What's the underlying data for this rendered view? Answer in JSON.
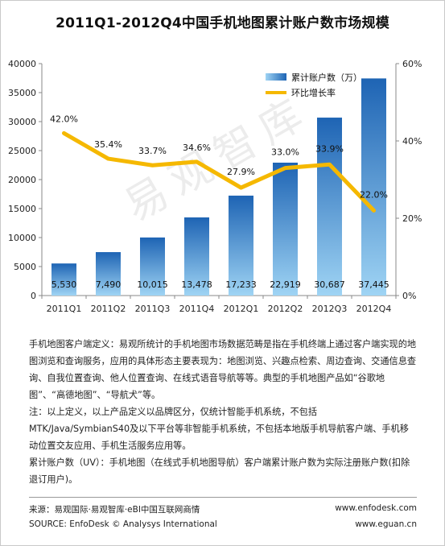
{
  "chart_data": {
    "type": "bar",
    "title": "2011Q1-2012Q4中国手机地图累计账户数市场规模",
    "categories": [
      "2011Q1",
      "2011Q2",
      "2011Q3",
      "2011Q4",
      "2012Q1",
      "2012Q2",
      "2012Q3",
      "2012Q4"
    ],
    "series": [
      {
        "name": "累计账户数（万）",
        "type": "bar",
        "axis": "left",
        "values": [
          5530,
          7490,
          10015,
          13478,
          17233,
          22919,
          30687,
          37445
        ],
        "labels": [
          "5,530",
          "7,490",
          "10,015",
          "13,478",
          "17,233",
          "22,919",
          "30,687",
          "37,445"
        ]
      },
      {
        "name": "环比增长率",
        "type": "line",
        "axis": "right",
        "values": [
          42.0,
          35.4,
          33.7,
          34.6,
          27.9,
          33.0,
          33.9,
          22.0
        ],
        "labels": [
          "42.0%",
          "35.4%",
          "33.7%",
          "34.6%",
          "27.9%",
          "33.0%",
          "33.9%",
          "22.0%"
        ]
      }
    ],
    "y_left": {
      "min": 0,
      "max": 40000,
      "ticks": [
        "0",
        "5000",
        "10000",
        "15000",
        "20000",
        "25000",
        "30000",
        "35000",
        "40000"
      ]
    },
    "y_right": {
      "min": 0,
      "max": 60,
      "ticks": [
        "0%",
        "20%",
        "40%",
        "60%"
      ]
    },
    "grid": false,
    "legend": "top-right",
    "colors": {
      "bar_top": "#1e64b4",
      "bar_bottom": "#9fd4f4",
      "line": "#f5b800"
    }
  },
  "watermark": "易观智库",
  "notes": [
    "手机地图客户端定义：易观所统计的手机地图市场数据范畴是指在手机终端上通过客户端实现的地图浏览和查询服务，应用的具体形态主要表现为：地图浏览、兴趣点检索、周边查询、交通信息查询、自我位置查询、他人位置查询、在线式语音导航等等。典型的手机地图产品如“谷歌地图”、“高德地图”、“导航犬”等。",
    "注：以上定义，以上产品定义以品牌区分，仅统计智能手机系统，不包括MTK/Java/SymbianS40及以下平台等非智能手机系统，不包括本地版手机导航客户端、手机移动位置交友应用、手机生活服务应用等。",
    "累计账户数（UV）：手机地图（在线式手机地图导航）客户端累计账户数为实际注册账户数(扣除退订用户)。"
  ],
  "footer": {
    "source_cn": "来源：易观国际·易观智库·eBI中国互联网商情",
    "source_en": "SOURCE: EnfoDesk © Analysys International",
    "site1": "www.enfodesk.com",
    "site2": "www.eguan.cn"
  }
}
